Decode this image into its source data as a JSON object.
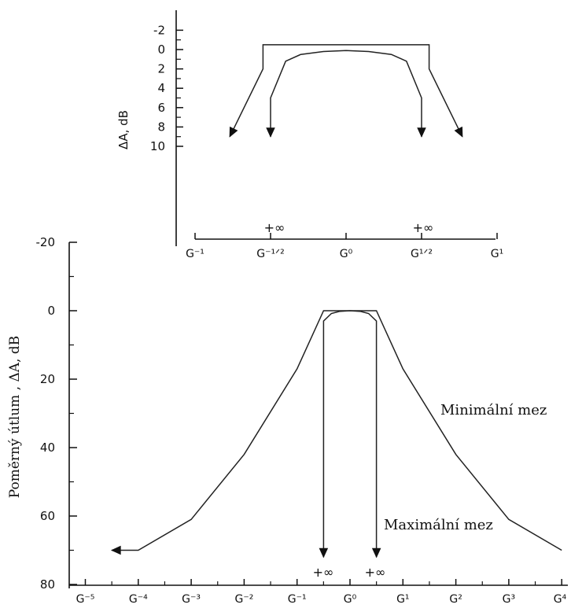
{
  "chart_data": [
    {
      "type": "line",
      "ylabel": "ΔA, dB",
      "yticks": [
        "-2",
        "0",
        "2",
        "4",
        "6",
        "8",
        "10"
      ],
      "ylim": [
        -2,
        10
      ],
      "y_inverted": true,
      "xtick_labels": [
        "G⁻¹",
        "G⁻¹ᐟ²",
        "G⁰",
        "G¹ᐟ²",
        "G¹"
      ],
      "x_log_range": [
        -1,
        1
      ],
      "series": [
        {
          "values": [
            [
              -0.77,
              9
            ],
            [
              -0.55,
              2
            ],
            [
              -0.55,
              -0.5
            ],
            [
              0.55,
              -0.5
            ],
            [
              0.55,
              2
            ],
            [
              0.77,
              9
            ]
          ]
        },
        {
          "values": [
            [
              -0.5,
              9
            ],
            [
              -0.5,
              5
            ],
            [
              -0.4,
              1.2
            ],
            [
              -0.3,
              0.5
            ],
            [
              -0.15,
              0.2
            ],
            [
              0,
              0.1
            ],
            [
              0.15,
              0.2
            ],
            [
              0.3,
              0.5
            ],
            [
              0.4,
              1.2
            ],
            [
              0.5,
              5
            ],
            [
              0.5,
              9
            ]
          ]
        }
      ],
      "annotations": [
        "+∞",
        "+∞"
      ]
    },
    {
      "type": "line",
      "ylabel": "Poměrný útlum ,  ΔA,  dB",
      "yticks": [
        "-20",
        "0",
        "20",
        "40",
        "60",
        "80"
      ],
      "ylim": [
        -20,
        80
      ],
      "y_inverted": true,
      "xtick_labels": [
        "G⁻⁵",
        "G⁻⁴",
        "G⁻³",
        "G⁻²",
        "G⁻¹",
        "G⁰",
        "G¹",
        "G²",
        "G³",
        "G⁴"
      ],
      "x_log_range": [
        -5,
        4
      ],
      "series": [
        {
          "values": [
            [
              -4.5,
              70
            ],
            [
              -4,
              70
            ],
            [
              -3,
              61
            ],
            [
              -2,
              42
            ],
            [
              -1,
              17
            ],
            [
              -0.5,
              0
            ],
            [
              0.5,
              0
            ],
            [
              1,
              17
            ],
            [
              2,
              42
            ],
            [
              3,
              61
            ],
            [
              4,
              70
            ]
          ]
        },
        {
          "values": [
            [
              -0.5,
              72
            ],
            [
              -0.5,
              3
            ],
            [
              -0.35,
              0.8
            ],
            [
              -0.2,
              0.2
            ],
            [
              0,
              0
            ],
            [
              0.2,
              0.2
            ],
            [
              0.35,
              0.8
            ],
            [
              0.5,
              3
            ],
            [
              0.5,
              72
            ]
          ]
        }
      ],
      "annotations": [
        "Minimální mez",
        "Maximální mez",
        "+∞",
        "+∞"
      ]
    }
  ]
}
